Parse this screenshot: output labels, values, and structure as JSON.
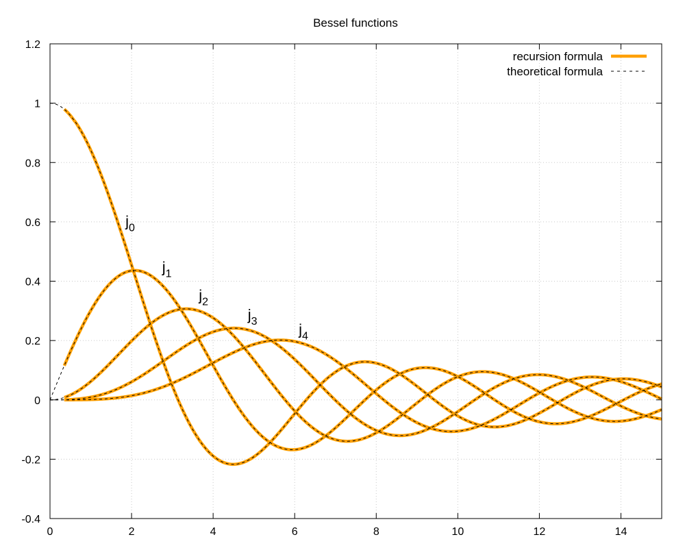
{
  "chart_data": {
    "type": "line",
    "title": "Bessel functions",
    "xlabel": "",
    "ylabel": "",
    "xlim": [
      0,
      15
    ],
    "ylim": [
      -0.4,
      1.2
    ],
    "x_ticks": [
      0,
      2,
      4,
      6,
      8,
      10,
      12,
      14
    ],
    "y_ticks": [
      -0.4,
      -0.2,
      0,
      0.2,
      0.4,
      0.6,
      0.8,
      1,
      1.2
    ],
    "x_tick_labels": [
      "0",
      "2",
      "4",
      "6",
      "8",
      "10",
      "12",
      "14"
    ],
    "y_tick_labels": [
      "-0.4",
      "-0.2",
      "0",
      "0.2",
      "0.4",
      "0.6",
      "0.8",
      "1",
      "1.2"
    ],
    "grid": true,
    "legend_position": "top-right",
    "legend": [
      {
        "label": "recursion formula",
        "color": "#ffa000",
        "style": "solid"
      },
      {
        "label": "theoretical formula",
        "color": "#000000",
        "style": "dashed"
      }
    ],
    "annotations": [
      {
        "base": "j",
        "sub": "0",
        "x": 1.85,
        "y": 0.585
      },
      {
        "base": "j",
        "sub": "1",
        "x": 2.75,
        "y": 0.43
      },
      {
        "base": "j",
        "sub": "2",
        "x": 3.65,
        "y": 0.335
      },
      {
        "base": "j",
        "sub": "3",
        "x": 4.85,
        "y": 0.27
      },
      {
        "base": "j",
        "sub": "4",
        "x": 6.1,
        "y": 0.22
      }
    ],
    "series": [
      {
        "order": 0,
        "x_recursion": [
          0.35,
          15.0
        ],
        "x_theoretical": [
          0.0,
          15.0
        ],
        "x": [
          0.35,
          0.5,
          1,
          1.5,
          2,
          2.5,
          3,
          3.5,
          4,
          4.5,
          5,
          5.5,
          6,
          6.5,
          7,
          7.5,
          8,
          8.5,
          9,
          9.5,
          10,
          10.5,
          11,
          11.5,
          12,
          12.5,
          13,
          13.5,
          14,
          14.5,
          15
        ],
        "values": [
          0.98,
          0.959,
          0.841,
          0.665,
          0.455,
          0.239,
          0.047,
          -0.1,
          -0.189,
          -0.217,
          -0.192,
          -0.128,
          -0.047,
          0.033,
          0.094,
          0.125,
          0.124,
          0.094,
          0.046,
          -0.008,
          -0.054,
          -0.084,
          -0.091,
          -0.077,
          -0.045,
          -0.005,
          0.032,
          0.06,
          0.071,
          0.064,
          0.043
        ]
      },
      {
        "order": 1,
        "x_recursion": [
          0.35,
          15.0
        ],
        "x_theoretical": [
          0.0,
          15.0
        ],
        "x": [
          0.35,
          0.5,
          1,
          1.5,
          2,
          2.5,
          3,
          3.5,
          4,
          4.5,
          5,
          5.5,
          6,
          6.5,
          7,
          7.5,
          8,
          8.5,
          9,
          9.5,
          10,
          10.5,
          11,
          11.5,
          12,
          12.5,
          13,
          13.5,
          14,
          14.5,
          15
        ],
        "values": [
          0.116,
          0.162,
          0.301,
          0.396,
          0.435,
          0.416,
          0.346,
          0.239,
          0.116,
          0.002,
          -0.095,
          -0.15,
          -0.168,
          -0.15,
          -0.095,
          -0.027,
          0.037,
          0.085,
          0.11,
          0.108,
          0.078,
          0.034,
          -0.013,
          -0.054,
          -0.078,
          -0.08,
          -0.064,
          -0.033,
          0.003,
          0.034,
          0.055
        ]
      },
      {
        "order": 2,
        "x_recursion": [
          0.35,
          15.0
        ],
        "x_theoretical": [
          0.0,
          15.0
        ],
        "x": [
          0.35,
          0.5,
          1,
          1.5,
          2,
          2.5,
          3,
          3.5,
          4,
          4.5,
          5,
          5.5,
          6,
          6.5,
          7,
          7.5,
          8,
          8.5,
          9,
          9.5,
          10,
          10.5,
          11,
          11.5,
          12,
          12.5,
          13,
          13.5,
          14,
          14.5,
          15
        ],
        "values": [
          0.008,
          0.016,
          0.062,
          0.129,
          0.198,
          0.257,
          0.299,
          0.306,
          0.274,
          0.221,
          0.135,
          0.04,
          -0.053,
          -0.115,
          -0.139,
          -0.128,
          -0.078,
          -0.016,
          0.046,
          0.089,
          0.107,
          0.097,
          0.067,
          0.018,
          -0.027,
          -0.061,
          -0.079,
          -0.075,
          -0.056,
          -0.023,
          0.015
        ]
      },
      {
        "order": 3,
        "x_recursion": [
          0.35,
          15.0
        ],
        "x_theoretical": [
          0.0,
          15.0
        ],
        "x": [
          0.35,
          0.5,
          1,
          1.5,
          2,
          2.5,
          3,
          3.5,
          4,
          4.5,
          5,
          5.5,
          6,
          6.5,
          7,
          7.5,
          8,
          8.5,
          9,
          9.5,
          10,
          10.5,
          11,
          11.5,
          12,
          12.5,
          13,
          13.5,
          14,
          14.5,
          15
        ],
        "values": [
          0.0,
          0.001,
          0.009,
          0.029,
          0.061,
          0.1,
          0.154,
          0.201,
          0.229,
          0.241,
          0.23,
          0.183,
          0.115,
          0.033,
          -0.038,
          -0.093,
          -0.12,
          -0.112,
          -0.077,
          -0.024,
          0.03,
          0.074,
          0.095,
          0.088,
          0.06,
          0.018,
          -0.025,
          -0.056,
          -0.07,
          -0.066,
          -0.046
        ]
      },
      {
        "order": 4,
        "x_recursion": [
          0.35,
          15.0
        ],
        "x_theoretical": [
          0.0,
          15.0
        ],
        "x": [
          0.35,
          0.5,
          1,
          1.5,
          2,
          2.5,
          3,
          3.5,
          4,
          4.5,
          5,
          5.5,
          6,
          6.5,
          7,
          7.5,
          8,
          8.5,
          9,
          9.5,
          10,
          10.5,
          11,
          11.5,
          12,
          12.5,
          13,
          13.5,
          14,
          14.5,
          15
        ],
        "values": [
          0.0,
          0.0,
          0.001,
          0.005,
          0.014,
          0.028,
          0.051,
          0.08,
          0.113,
          0.15,
          0.181,
          0.199,
          0.195,
          0.168,
          0.12,
          0.055,
          -0.013,
          -0.069,
          -0.105,
          -0.111,
          -0.089,
          -0.046,
          0.006,
          0.051,
          0.081,
          0.088,
          0.071,
          0.037,
          -0.004,
          -0.04,
          -0.063
        ]
      }
    ]
  },
  "colors": {
    "recursion": "#ffa000",
    "theoretical": "#000000",
    "grid": "#c8c8c8"
  }
}
